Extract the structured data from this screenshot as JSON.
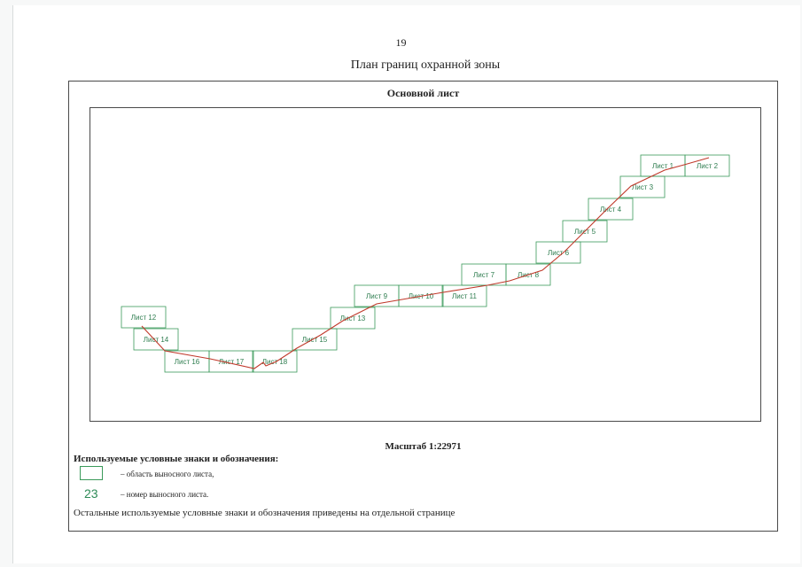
{
  "page_number": "19",
  "document_title": "План границ охранной зоны",
  "main_sheet_title": "Основной лист",
  "scale_text": "Масштаб 1:22971",
  "legend": {
    "title": "Используемые условные знаки и обозначения:",
    "box_item_text": "– область выносного листа,",
    "number_sample": "23",
    "number_item_text": "– номер выносного листа.",
    "footnote": "Остальные используемые условные знаки и обозначения приведены на отдельной странице"
  },
  "colors": {
    "sheet_outline": "#3a9a5a",
    "sheet_label": "#2e7d4f",
    "route_line": "#c0392b",
    "frame": "#4a4a4a"
  },
  "sheets": [
    "Лист 1",
    "Лист 2",
    "Лист 3",
    "Лист 4",
    "Лист 5",
    "Лист 6",
    "Лист 7",
    "Лист 8",
    "Лист 9",
    "Лист 10",
    "Лист 11",
    "Лист 12",
    "Лист 13",
    "Лист 14",
    "Лист 15",
    "Лист 16",
    "Лист 17",
    "Лист 18"
  ]
}
